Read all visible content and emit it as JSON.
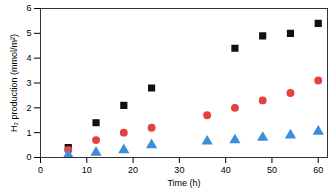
{
  "chart_data": {
    "type": "scatter",
    "x_label": "Time (h)",
    "y_label": "H₂ production (mmol/m²)",
    "xlim": [
      0,
      62
    ],
    "ylim": [
      0,
      6
    ],
    "xticks": [
      0,
      10,
      20,
      30,
      40,
      50,
      60
    ],
    "yticks": [
      0,
      1,
      2,
      3,
      4,
      5,
      6
    ],
    "grid": false,
    "series": [
      {
        "color": "#111111",
        "marker": "square",
        "x": [
          6,
          12,
          18,
          24,
          42,
          48,
          54,
          60
        ],
        "values": [
          0.4,
          1.4,
          2.1,
          2.8,
          4.4,
          4.9,
          5.0,
          5.4
        ]
      },
      {
        "color": "#e8403f",
        "marker": "circle",
        "x": [
          6,
          12,
          18,
          24,
          36,
          42,
          48,
          54,
          60
        ],
        "values": [
          0.3,
          0.7,
          1.0,
          1.2,
          1.7,
          2.0,
          2.3,
          2.6,
          3.1
        ]
      },
      {
        "color": "#3a8fd8",
        "marker": "triangle",
        "x": [
          6,
          12,
          18,
          24,
          36,
          42,
          48,
          54,
          60
        ],
        "values": [
          0.1,
          0.2,
          0.3,
          0.5,
          0.65,
          0.7,
          0.8,
          0.9,
          1.05
        ]
      }
    ]
  }
}
